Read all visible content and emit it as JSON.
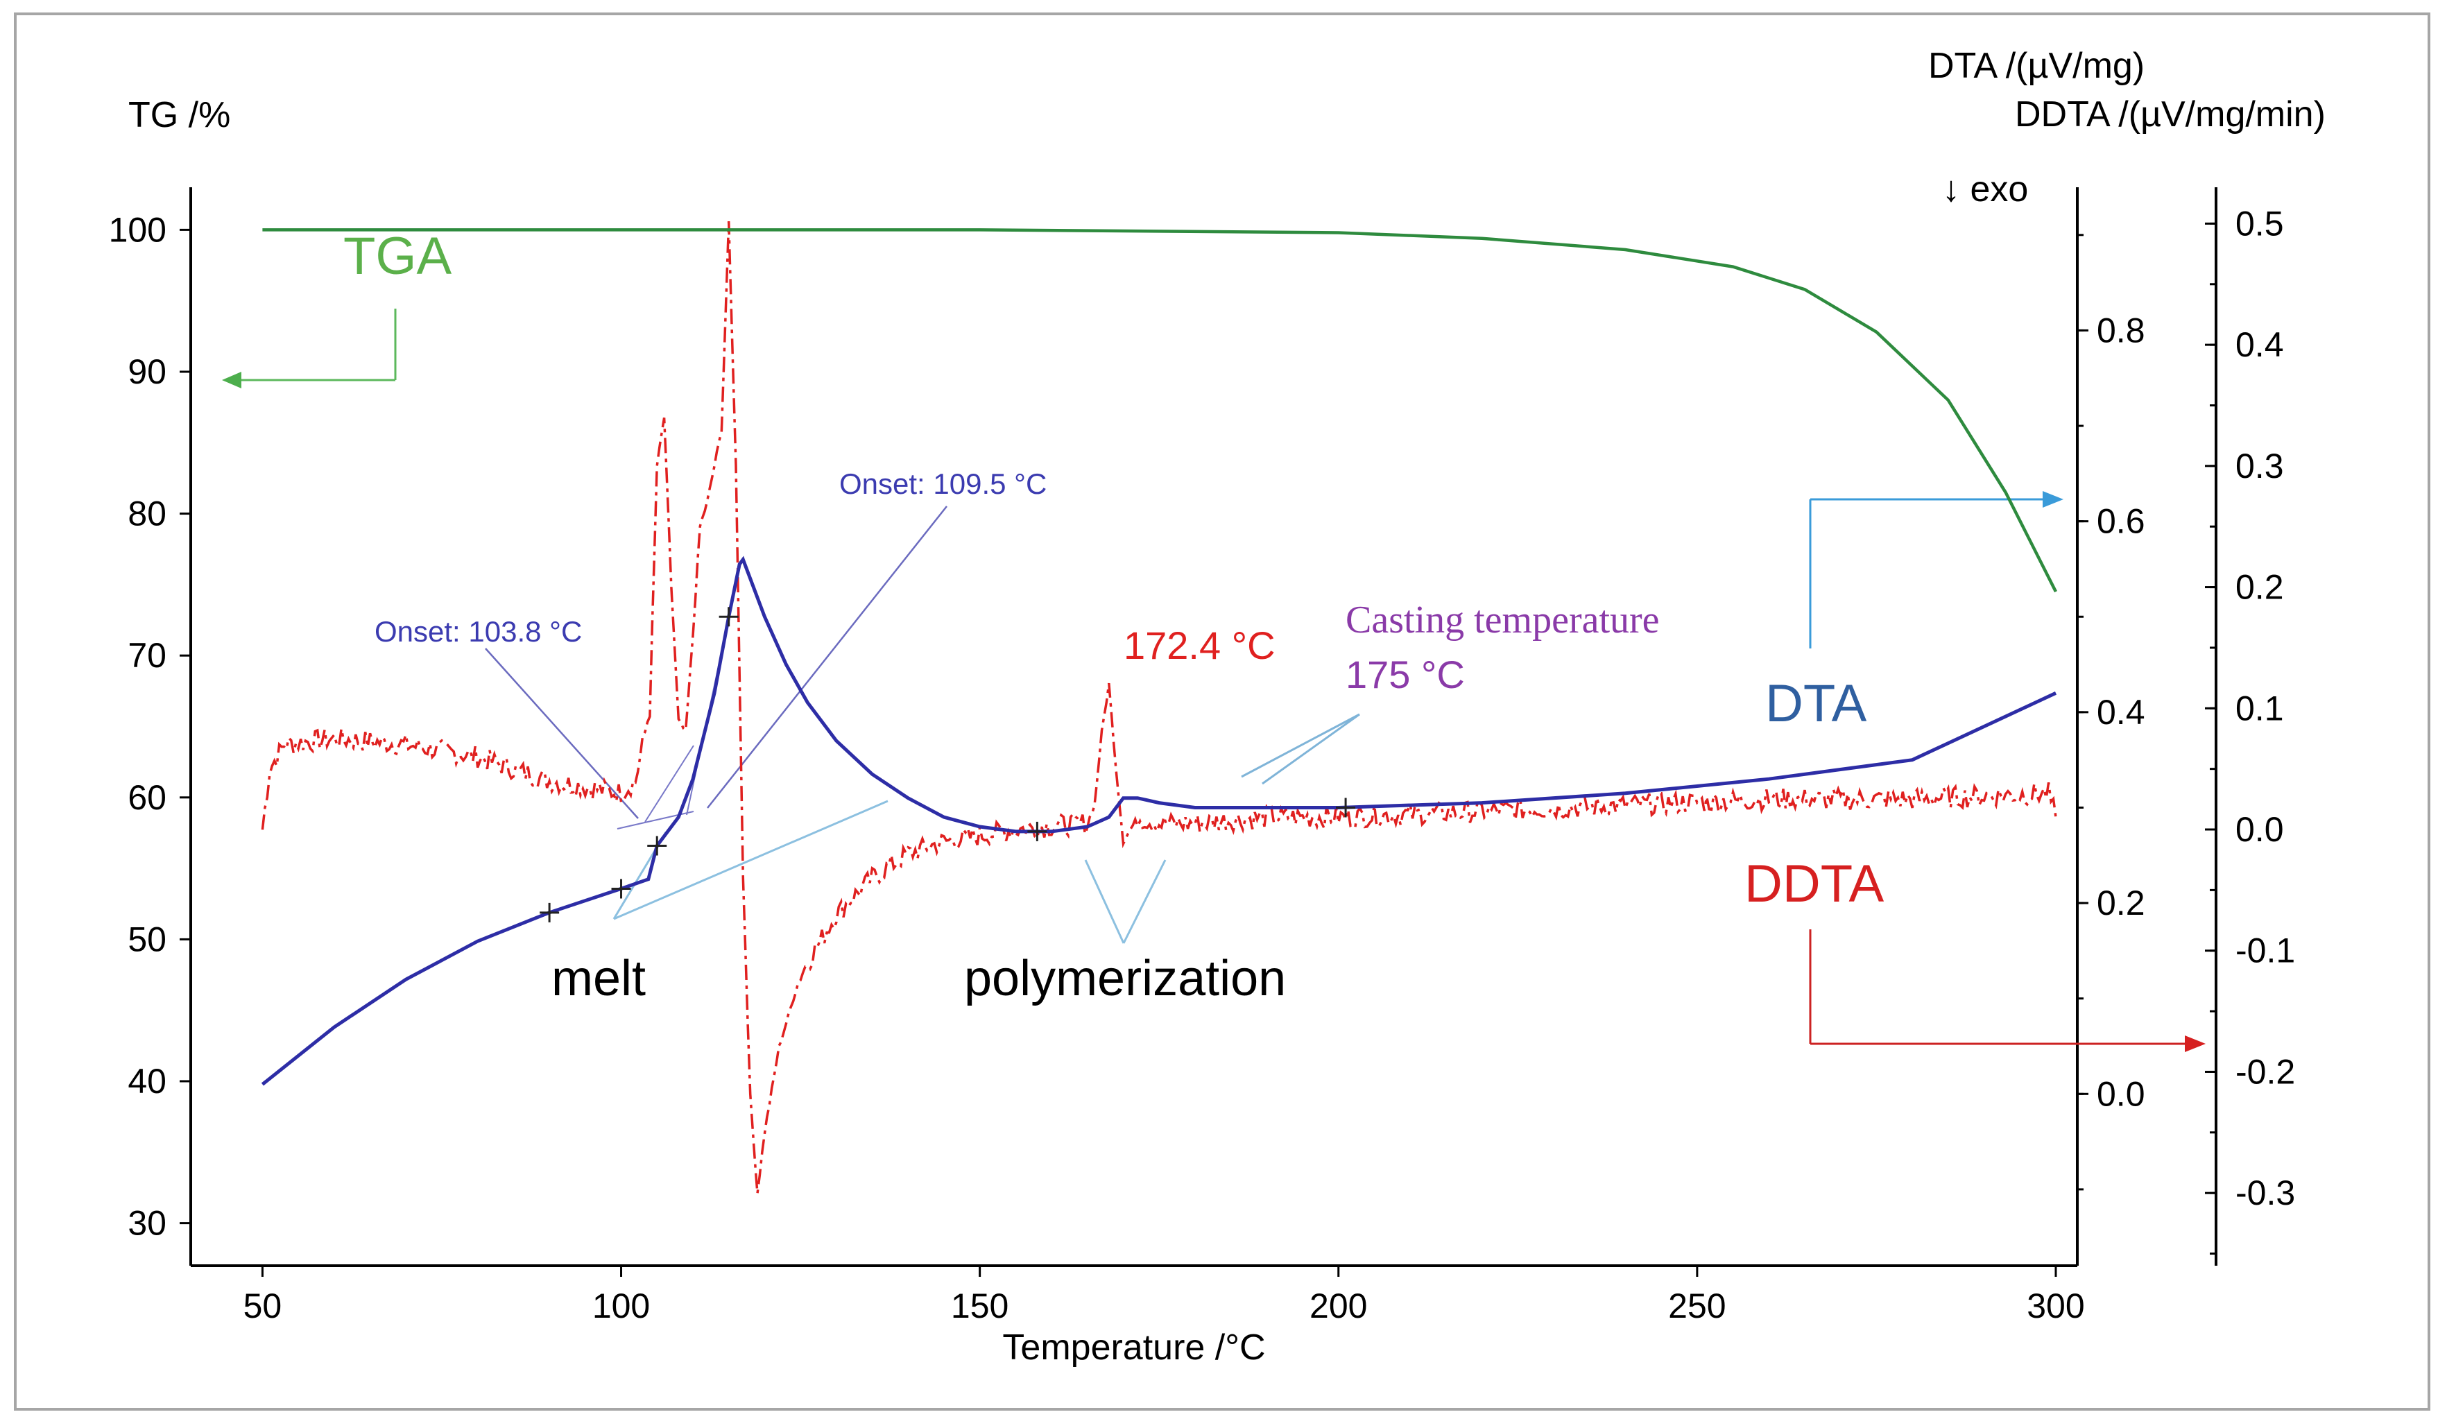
{
  "chart_data": {
    "type": "line",
    "xlabel": "Temperature /°C",
    "xlim": [
      40,
      303
    ],
    "xticks": [
      50,
      100,
      150,
      200,
      250,
      300
    ],
    "axes": {
      "tg": {
        "title": "TG /%",
        "lim": [
          27,
          103
        ],
        "ticks": [
          30,
          40,
          50,
          60,
          70,
          80,
          90,
          100
        ]
      },
      "dta": {
        "title": "DTA /(µV/mg)",
        "exo": "↓ exo",
        "lim": [
          -0.18,
          0.95
        ],
        "ticks": [
          0.0,
          0.2,
          0.4,
          0.6,
          0.8
        ],
        "tick_labels": [
          "0.0",
          "0.2",
          "0.4",
          "0.6",
          "0.8"
        ]
      },
      "ddta": {
        "title": "DDTA /(µV/mg/min)",
        "lim": [
          -0.36,
          0.53
        ],
        "ticks": [
          -0.3,
          -0.2,
          -0.1,
          0.0,
          0.1,
          0.2,
          0.3,
          0.4,
          0.5
        ],
        "tick_labels": [
          "-0.3",
          "-0.2",
          "-0.1",
          "0.0",
          "0.1",
          "0.2",
          "0.3",
          "0.4",
          "0.5"
        ]
      }
    },
    "series": [
      {
        "name": "TGA",
        "axis": "tg",
        "color": "#2e8b3e",
        "style": "solid",
        "x": [
          50,
          100,
          150,
          200,
          220,
          240,
          255,
          265,
          275,
          285,
          293,
          300
        ],
        "y": [
          100.0,
          100.0,
          100.0,
          99.8,
          99.4,
          98.6,
          97.4,
          95.8,
          92.8,
          88.0,
          81.5,
          74.5
        ]
      },
      {
        "name": "DTA",
        "axis": "dta",
        "color": "#2d2da6",
        "style": "solid",
        "x": [
          50,
          60,
          70,
          80,
          90,
          100,
          103.8,
          105,
          108,
          110,
          113,
          115,
          116.5,
          117,
          118,
          120,
          123,
          126,
          130,
          135,
          140,
          145,
          150,
          155,
          160,
          165,
          168,
          170,
          172,
          175,
          180,
          190,
          200,
          220,
          240,
          260,
          280,
          300
        ],
        "y": [
          0.01,
          0.07,
          0.12,
          0.16,
          0.19,
          0.215,
          0.225,
          0.26,
          0.29,
          0.33,
          0.42,
          0.5,
          0.555,
          0.56,
          0.54,
          0.5,
          0.45,
          0.41,
          0.37,
          0.335,
          0.31,
          0.29,
          0.28,
          0.275,
          0.275,
          0.28,
          0.29,
          0.31,
          0.31,
          0.305,
          0.3,
          0.3,
          0.3,
          0.305,
          0.315,
          0.33,
          0.35,
          0.42
        ]
      },
      {
        "name": "DDTA",
        "axis": "ddta",
        "color": "#e0201f",
        "style": "dash-dot",
        "x": [
          50,
          51,
          53,
          60,
          70,
          80,
          90,
          95,
          100,
          102,
          104,
          105,
          106,
          107,
          108,
          109,
          110,
          111,
          112,
          113,
          114,
          115,
          116,
          117,
          118,
          119,
          120,
          122,
          125,
          130,
          135,
          140,
          145,
          150,
          155,
          160,
          165,
          166,
          167,
          168,
          169,
          170,
          171,
          172,
          175,
          180,
          190,
          200,
          220,
          240,
          260,
          280,
          299,
          300
        ],
        "y": [
          0.0,
          0.05,
          0.07,
          0.075,
          0.07,
          0.06,
          0.04,
          0.035,
          0.03,
          0.04,
          0.1,
          0.3,
          0.34,
          0.2,
          0.09,
          0.08,
          0.16,
          0.25,
          0.27,
          0.3,
          0.33,
          0.5,
          0.3,
          -0.04,
          -0.22,
          -0.3,
          -0.25,
          -0.18,
          -0.12,
          -0.07,
          -0.04,
          -0.02,
          -0.01,
          -0.005,
          0.0,
          0.003,
          0.005,
          0.02,
          0.08,
          0.12,
          0.05,
          -0.01,
          0.0,
          0.01,
          0.005,
          0.005,
          0.01,
          0.01,
          0.015,
          0.02,
          0.025,
          0.025,
          0.03,
          0.01
        ]
      }
    ],
    "annotations": {
      "tga_label": "TGA",
      "dta_label": "DTA",
      "ddta_label": "DDTA",
      "onset1": "Onset: 103.8 °C",
      "onset2": "Onset: 109.5 °C",
      "peak": "172.4 °C",
      "casting_line1": "Casting temperature",
      "casting_line2": "175 °C",
      "melt": "melt",
      "polymerization": "polymerization"
    },
    "markers": [
      {
        "x": 90,
        "y": 0.19
      },
      {
        "x": 100,
        "y": 0.215
      },
      {
        "x": 105,
        "y": 0.26
      },
      {
        "x": 115,
        "y": 0.5
      },
      {
        "x": 158,
        "y": 0.275
      },
      {
        "x": 201,
        "y": 0.3
      }
    ]
  }
}
